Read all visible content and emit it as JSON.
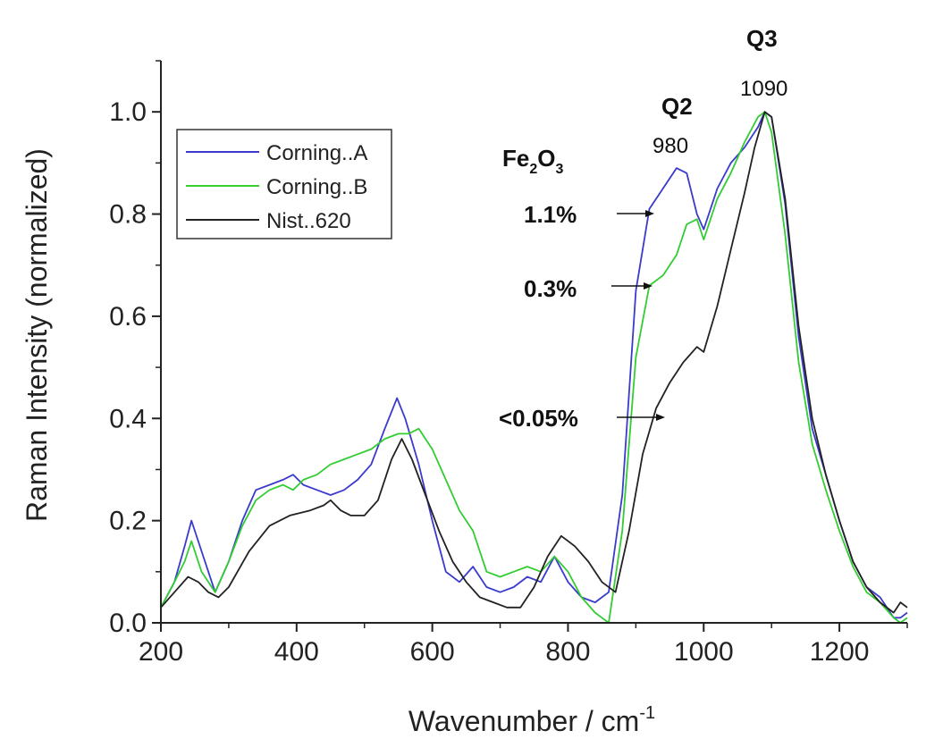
{
  "chart_data": {
    "type": "line",
    "xlabel": "Wavenumber / cm",
    "xlabel_sup": "-1",
    "ylabel": "Raman Intensity (normalized)",
    "xlim": [
      200,
      1300
    ],
    "ylim": [
      0,
      1.1
    ],
    "x_ticks": [
      "200",
      "400",
      "600",
      "800",
      "1000",
      "1200"
    ],
    "y_ticks": [
      "0.0",
      "0.2",
      "0.4",
      "0.6",
      "0.8",
      "1.0"
    ],
    "legend_position": "top-left",
    "series": [
      {
        "name": "Corning..A",
        "color": "#3a3acc",
        "x": [
          200,
          220,
          235,
          245,
          260,
          280,
          300,
          320,
          340,
          360,
          380,
          395,
          410,
          430,
          450,
          470,
          490,
          510,
          530,
          548,
          560,
          580,
          600,
          620,
          640,
          660,
          680,
          700,
          720,
          740,
          760,
          780,
          800,
          820,
          840,
          850,
          860,
          880,
          900,
          920,
          940,
          960,
          975,
          990,
          1000,
          1020,
          1040,
          1060,
          1080,
          1090,
          1100,
          1120,
          1140,
          1160,
          1180,
          1200,
          1220,
          1240,
          1260,
          1280,
          1290,
          1300
        ],
        "y": [
          0.03,
          0.08,
          0.15,
          0.2,
          0.14,
          0.06,
          0.12,
          0.2,
          0.26,
          0.27,
          0.28,
          0.29,
          0.27,
          0.26,
          0.25,
          0.26,
          0.28,
          0.31,
          0.38,
          0.44,
          0.4,
          0.31,
          0.2,
          0.1,
          0.08,
          0.11,
          0.07,
          0.06,
          0.07,
          0.09,
          0.08,
          0.13,
          0.08,
          0.05,
          0.04,
          0.05,
          0.06,
          0.25,
          0.65,
          0.81,
          0.85,
          0.89,
          0.88,
          0.8,
          0.77,
          0.85,
          0.9,
          0.93,
          0.97,
          1.0,
          0.99,
          0.82,
          0.56,
          0.38,
          0.29,
          0.2,
          0.12,
          0.07,
          0.05,
          0.01,
          0.01,
          0.02
        ]
      },
      {
        "name": "Corning..B",
        "color": "#33cc33",
        "x": [
          200,
          220,
          235,
          245,
          260,
          280,
          300,
          320,
          340,
          360,
          380,
          395,
          410,
          430,
          450,
          470,
          490,
          510,
          530,
          550,
          565,
          580,
          600,
          620,
          640,
          660,
          680,
          700,
          720,
          740,
          760,
          780,
          800,
          820,
          840,
          850,
          860,
          880,
          900,
          920,
          940,
          960,
          975,
          990,
          1000,
          1020,
          1040,
          1060,
          1080,
          1090,
          1100,
          1120,
          1140,
          1160,
          1180,
          1200,
          1220,
          1240,
          1260,
          1280,
          1290,
          1300
        ],
        "y": [
          0.03,
          0.08,
          0.12,
          0.16,
          0.1,
          0.06,
          0.12,
          0.19,
          0.24,
          0.26,
          0.27,
          0.26,
          0.28,
          0.29,
          0.31,
          0.32,
          0.33,
          0.34,
          0.36,
          0.37,
          0.37,
          0.38,
          0.34,
          0.28,
          0.22,
          0.18,
          0.1,
          0.09,
          0.1,
          0.11,
          0.1,
          0.13,
          0.1,
          0.05,
          0.02,
          0.01,
          0.0,
          0.18,
          0.52,
          0.66,
          0.68,
          0.72,
          0.78,
          0.79,
          0.75,
          0.83,
          0.88,
          0.94,
          0.99,
          1.0,
          0.96,
          0.76,
          0.51,
          0.35,
          0.26,
          0.18,
          0.11,
          0.06,
          0.04,
          0.01,
          0.0,
          0.01
        ]
      },
      {
        "name": "Nist..620",
        "color": "#222222",
        "x": [
          200,
          220,
          240,
          255,
          270,
          285,
          300,
          330,
          360,
          390,
          420,
          440,
          450,
          465,
          480,
          500,
          520,
          540,
          555,
          570,
          590,
          610,
          630,
          650,
          670,
          690,
          710,
          730,
          750,
          770,
          790,
          810,
          830,
          850,
          870,
          890,
          910,
          930,
          950,
          970,
          990,
          1000,
          1020,
          1040,
          1060,
          1075,
          1090,
          1100,
          1120,
          1140,
          1160,
          1180,
          1200,
          1220,
          1240,
          1260,
          1280,
          1290,
          1300
        ],
        "y": [
          0.03,
          0.06,
          0.09,
          0.08,
          0.06,
          0.05,
          0.07,
          0.14,
          0.19,
          0.21,
          0.22,
          0.23,
          0.24,
          0.22,
          0.21,
          0.21,
          0.24,
          0.32,
          0.36,
          0.32,
          0.25,
          0.18,
          0.12,
          0.08,
          0.05,
          0.04,
          0.03,
          0.03,
          0.07,
          0.13,
          0.17,
          0.15,
          0.12,
          0.08,
          0.06,
          0.18,
          0.33,
          0.42,
          0.47,
          0.51,
          0.54,
          0.53,
          0.62,
          0.73,
          0.84,
          0.93,
          1.0,
          0.99,
          0.83,
          0.58,
          0.4,
          0.29,
          0.2,
          0.12,
          0.07,
          0.04,
          0.02,
          0.04,
          0.03
        ]
      }
    ],
    "annotations": {
      "fe_label": "Fe",
      "fe_sub1": "2",
      "fe_o": "O",
      "fe_sub2": "3",
      "pct_a": "1.1%",
      "pct_b": "0.3%",
      "pct_c": "<0.05%",
      "q2": "Q2",
      "q3": "Q3",
      "peak_980": "980",
      "peak_1090": "1090"
    }
  }
}
